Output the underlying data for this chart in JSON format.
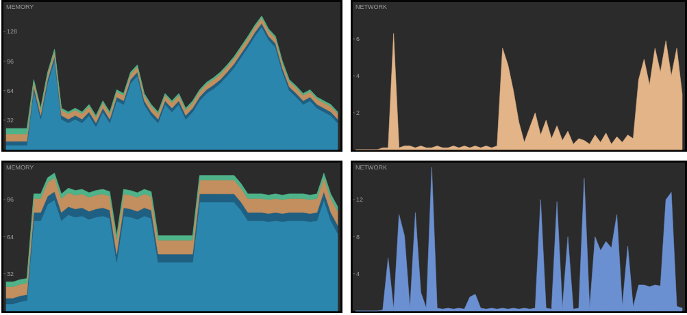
{
  "chart_data": [
    {
      "type": "area",
      "title": "MEMORY",
      "stacked": true,
      "ylim": [
        0,
        160
      ],
      "yticks": [
        32,
        64,
        96,
        128
      ],
      "categories": [
        null,
        null,
        null,
        null,
        null,
        null,
        null,
        null,
        null,
        null,
        null,
        null,
        null,
        null,
        null,
        null,
        null,
        null,
        null,
        null,
        null,
        null,
        null,
        null,
        null,
        null,
        null,
        null,
        null,
        null,
        null,
        null,
        null,
        null,
        null,
        null,
        null,
        null,
        null,
        null,
        null,
        null,
        null,
        null,
        null,
        null,
        null,
        null,
        null
      ],
      "series": [
        {
          "color": "#2b86ad",
          "values": [
            5,
            5,
            5,
            5,
            64,
            33,
            72,
            97,
            33,
            29,
            33,
            29,
            37,
            25,
            41,
            29,
            53,
            49,
            72,
            80,
            49,
            37,
            29,
            49,
            41,
            49,
            33,
            41,
            53,
            61,
            66,
            72,
            80,
            89,
            100,
            111,
            123,
            133,
            119,
            111,
            84,
            64,
            57,
            49,
            53,
            45,
            41,
            37,
            29
          ]
        },
        {
          "color": "#1f5f82",
          "values": [
            4,
            4,
            4,
            4,
            4,
            4,
            4,
            4,
            4,
            4,
            4,
            4,
            4,
            4,
            4,
            4,
            4,
            4,
            4,
            4,
            4,
            4,
            4,
            4,
            4,
            4,
            4,
            4,
            4,
            4,
            4,
            4,
            4,
            4,
            4,
            4,
            4,
            4,
            4,
            4,
            4,
            4,
            4,
            4,
            4,
            4,
            4,
            4,
            4
          ]
        },
        {
          "color": "#c38f5e",
          "values": [
            8,
            8,
            8,
            8,
            6,
            6,
            6,
            6,
            6,
            6,
            6,
            6,
            6,
            6,
            6,
            6,
            6,
            6,
            6,
            6,
            6,
            6,
            6,
            6,
            6,
            6,
            6,
            6,
            6,
            6,
            6,
            6,
            6,
            6,
            6,
            6,
            6,
            6,
            6,
            6,
            6,
            6,
            6,
            6,
            6,
            6,
            6,
            6,
            6
          ]
        },
        {
          "color": "#4fb38a",
          "values": [
            6,
            6,
            6,
            6,
            2,
            2,
            2,
            2,
            2,
            2,
            2,
            2,
            2,
            2,
            2,
            2,
            2,
            2,
            2,
            2,
            2,
            2,
            2,
            2,
            2,
            2,
            2,
            2,
            2,
            2,
            2,
            2,
            2,
            2,
            2,
            2,
            2,
            2,
            2,
            2,
            2,
            2,
            2,
            2,
            2,
            2,
            2,
            2,
            2
          ]
        }
      ]
    },
    {
      "type": "area",
      "title": "NETWORK",
      "ylim": [
        0,
        8
      ],
      "yticks": [
        2,
        4,
        6
      ],
      "categories": [
        null,
        null,
        null,
        null,
        null,
        null,
        null,
        null,
        null,
        null,
        null,
        null,
        null,
        null,
        null,
        null,
        null,
        null,
        null,
        null,
        null,
        null,
        null,
        null,
        null,
        null,
        null,
        null,
        null,
        null,
        null,
        null,
        null,
        null,
        null,
        null,
        null,
        null,
        null,
        null,
        null,
        null,
        null,
        null,
        null,
        null,
        null,
        null,
        null,
        null,
        null,
        null,
        null,
        null,
        null,
        null,
        null,
        null,
        null,
        null,
        null
      ],
      "series": [
        {
          "color": "#e2b487",
          "values": [
            0,
            0,
            0,
            0,
            0,
            0.1,
            0.1,
            6.3,
            0.1,
            0.2,
            0.2,
            0.1,
            0.2,
            0.1,
            0.1,
            0.2,
            0.1,
            0.1,
            0.2,
            0.1,
            0.2,
            0.1,
            0.2,
            0.1,
            0.2,
            0.1,
            0.2,
            5.5,
            4.6,
            3.2,
            1.5,
            0.4,
            1.2,
            2.0,
            0.8,
            1.6,
            0.6,
            1.3,
            0.5,
            1.0,
            0.3,
            0.6,
            0.5,
            0.3,
            0.8,
            0.4,
            0.9,
            0.3,
            0.7,
            0.4,
            0.8,
            0.6,
            3.8,
            4.9,
            3.5,
            5.5,
            4.2,
            5.9,
            4.0,
            5.5,
            3.0
          ]
        }
      ]
    },
    {
      "type": "area",
      "title": "MEMORY",
      "stacked": true,
      "ylim": [
        0,
        128
      ],
      "yticks": [
        32,
        64,
        96
      ],
      "categories": [
        null,
        null,
        null,
        null,
        null,
        null,
        null,
        null,
        null,
        null,
        null,
        null,
        null,
        null,
        null,
        null,
        null,
        null,
        null,
        null,
        null,
        null,
        null,
        null,
        null,
        null,
        null,
        null,
        null,
        null,
        null,
        null,
        null,
        null,
        null,
        null,
        null,
        null,
        null,
        null,
        null,
        null,
        null,
        null,
        null,
        null,
        null,
        null,
        null
      ],
      "series": [
        {
          "color": "#2b86ad",
          "values": [
            6,
            6,
            8,
            9,
            78,
            78,
            92,
            96,
            78,
            83,
            81,
            82,
            79,
            81,
            82,
            80,
            42,
            82,
            81,
            79,
            82,
            80,
            42,
            42,
            42,
            42,
            42,
            42,
            94,
            94,
            94,
            94,
            94,
            94,
            87,
            78,
            78,
            78,
            77,
            78,
            77,
            78,
            78,
            78,
            77,
            78,
            96,
            78,
            67
          ]
        },
        {
          "color": "#1f5f82",
          "values": [
            5,
            5,
            5,
            5,
            7,
            7,
            7,
            7,
            7,
            7,
            7,
            7,
            7,
            7,
            7,
            7,
            7,
            7,
            7,
            7,
            7,
            7,
            7,
            7,
            7,
            7,
            7,
            7,
            7,
            7,
            7,
            7,
            7,
            7,
            7,
            7,
            7,
            7,
            7,
            7,
            7,
            7,
            7,
            7,
            7,
            7,
            7,
            7,
            7
          ]
        },
        {
          "color": "#c38f5e",
          "values": [
            10,
            10,
            10,
            10,
            12,
            12,
            12,
            12,
            12,
            12,
            12,
            12,
            12,
            12,
            12,
            12,
            12,
            12,
            12,
            12,
            12,
            12,
            12,
            12,
            12,
            12,
            12,
            12,
            12,
            12,
            12,
            12,
            12,
            12,
            12,
            12,
            12,
            12,
            12,
            12,
            12,
            12,
            12,
            12,
            12,
            12,
            12,
            12,
            12
          ]
        },
        {
          "color": "#4fb38a",
          "values": [
            4,
            4,
            4,
            4,
            4,
            4,
            4,
            4,
            4,
            4,
            4,
            4,
            4,
            4,
            4,
            4,
            4,
            4,
            4,
            4,
            4,
            4,
            4,
            4,
            4,
            4,
            4,
            4,
            4,
            4,
            4,
            4,
            4,
            4,
            4,
            4,
            4,
            4,
            4,
            4,
            4,
            4,
            4,
            4,
            4,
            4,
            4,
            4,
            4
          ]
        }
      ]
    },
    {
      "type": "area",
      "title": "NETWORK",
      "ylim": [
        0,
        16
      ],
      "yticks": [
        4,
        8,
        12
      ],
      "categories": [
        null,
        null,
        null,
        null,
        null,
        null,
        null,
        null,
        null,
        null,
        null,
        null,
        null,
        null,
        null,
        null,
        null,
        null,
        null,
        null,
        null,
        null,
        null,
        null,
        null,
        null,
        null,
        null,
        null,
        null,
        null,
        null,
        null,
        null,
        null,
        null,
        null,
        null,
        null,
        null,
        null,
        null,
        null,
        null,
        null,
        null,
        null,
        null,
        null,
        null,
        null,
        null,
        null,
        null,
        null,
        null,
        null,
        null,
        null,
        null,
        null
      ],
      "series": [
        {
          "color": "#6b90d2",
          "values": [
            0,
            0,
            0,
            0,
            0,
            0.1,
            5.7,
            0.2,
            10.4,
            8.1,
            0.3,
            10.6,
            2.0,
            0.3,
            15.5,
            0.3,
            0.2,
            0.3,
            0.2,
            0.3,
            0.2,
            1.5,
            1.8,
            0.3,
            0.2,
            0.3,
            0.2,
            0.3,
            0.2,
            0.3,
            0.2,
            0.3,
            0.2,
            0.3,
            12.0,
            0.3,
            0.2,
            11.8,
            0.3,
            8.0,
            0.2,
            0.3,
            14.3,
            0.3,
            8.0,
            6.5,
            7.5,
            6.8,
            10.4,
            0.5,
            7.0,
            0.4,
            2.8,
            2.8,
            2.6,
            2.8,
            2.7,
            12.0,
            12.8,
            0.5,
            0.3
          ]
        }
      ]
    }
  ]
}
